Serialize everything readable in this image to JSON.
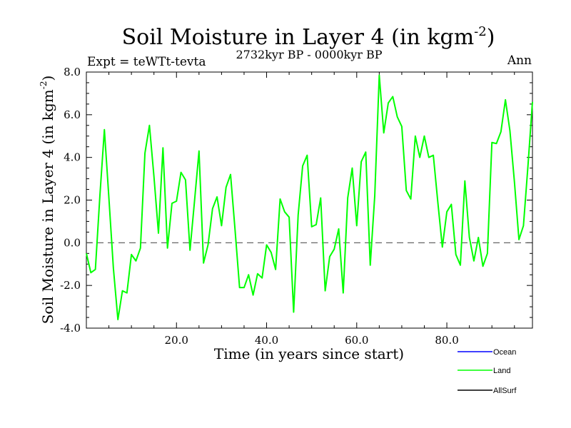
{
  "chart_data": {
    "type": "line",
    "title": "Soil Moisture in Layer 4 (in kgm",
    "title_sup": "-2",
    "title_close": ")",
    "subtitle": "2732kyr BP - 0000kyr BP",
    "left_label": "Expt = teWTt-tevta",
    "right_label": "Ann",
    "xlabel": "Time (in years since start)",
    "ylabel": "Soil Moisture in Layer 4 (in kgm",
    "ylabel_sup": "-2",
    "ylabel_close": ")",
    "xlim": [
      0,
      99
    ],
    "ylim": [
      -4,
      8
    ],
    "xticks": [
      20,
      40,
      60,
      80
    ],
    "xtick_labels": [
      "20.0",
      "40.0",
      "60.0",
      "80.0"
    ],
    "yticks": [
      -4,
      -2,
      0,
      2,
      4,
      6,
      8
    ],
    "ytick_labels": [
      "-4.0",
      "-2.0",
      "0.0",
      "2.0",
      "4.0",
      "6.0",
      "8.0"
    ],
    "reference_line": 0,
    "series": [
      {
        "name": "Ocean",
        "color": "#0000ff",
        "values": []
      },
      {
        "name": "Land",
        "color": "#00ff00",
        "x_start": 0,
        "values": [
          -0.5,
          -1.4,
          -1.25,
          2.2,
          5.3,
          2.1,
          -1.2,
          -3.6,
          -2.25,
          -2.35,
          -0.55,
          -0.85,
          -0.25,
          4.2,
          5.5,
          3.1,
          0.45,
          4.45,
          -0.25,
          1.85,
          1.95,
          3.3,
          2.95,
          -0.35,
          1.95,
          4.3,
          -0.95,
          -0.1,
          1.6,
          2.15,
          0.8,
          2.6,
          3.2,
          0.6,
          -2.1,
          -2.1,
          -1.5,
          -2.45,
          -1.45,
          -1.65,
          -0.1,
          -0.45,
          -1.25,
          2.05,
          1.45,
          1.2,
          -3.25,
          1.3,
          3.6,
          4.1,
          0.75,
          0.85,
          2.1,
          -2.25,
          -0.65,
          -0.3,
          0.65,
          -2.35,
          2.1,
          3.5,
          0.8,
          3.8,
          4.25,
          -1.05,
          2.2,
          7.85,
          5.15,
          6.55,
          6.85,
          5.9,
          5.45,
          2.45,
          2.05,
          5.0,
          4.0,
          5.0,
          4.0,
          4.1,
          1.9,
          -0.2,
          1.45,
          1.8,
          -0.55,
          -1.05,
          2.9,
          0.25,
          -0.85,
          0.25,
          -1.1,
          -0.5,
          4.7,
          4.65,
          5.2,
          6.7,
          5.25,
          2.85,
          0.15,
          0.8,
          3.6,
          6.6
        ]
      },
      {
        "name": "AllSurf",
        "color": "#000000",
        "values": []
      }
    ],
    "legend_position": "bottom-right"
  }
}
